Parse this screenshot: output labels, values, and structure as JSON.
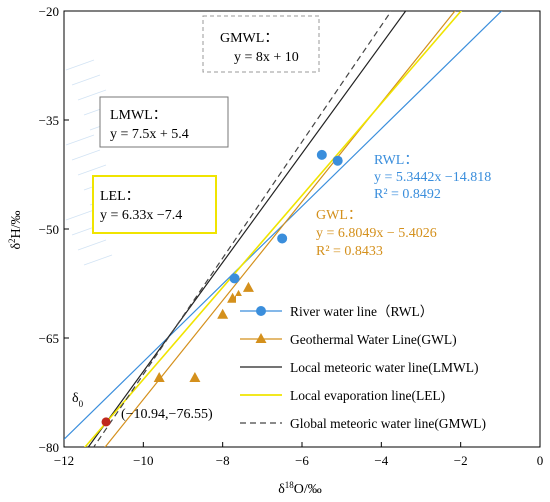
{
  "chart_data": {
    "type": "scatter",
    "xlabel": "δ18O/‰",
    "ylabel": "δ2H/‰",
    "xlim": [
      -12,
      0
    ],
    "ylim": [
      -80,
      -20
    ],
    "xticks": [
      "−12",
      "−10",
      "−8",
      "−6",
      "−4",
      "−2",
      "0"
    ],
    "xtick_values": [
      -12,
      -10,
      -8,
      -6,
      -4,
      -2,
      0
    ],
    "yticks": [
      "−20",
      "−35",
      "−50",
      "−65",
      "−80"
    ],
    "ytick_values": [
      -20,
      -35,
      -50,
      -65,
      -80
    ],
    "colors": {
      "rwl": "#3a8edc",
      "gwl": "#d4901c",
      "lmwl": "#222222",
      "lel": "#f0e400",
      "gmwl": "#444444",
      "origin": "#c0281e"
    },
    "series": [
      {
        "name": "River water line（RWL）",
        "kind": "points+line",
        "marker": "circle",
        "points": [
          [
            -5.5,
            -39.8
          ],
          [
            -5.1,
            -40.6
          ],
          [
            -6.5,
            -51.3
          ],
          [
            -7.7,
            -56.8
          ]
        ],
        "line": {
          "slope": 5.3442,
          "intercept": -14.818
        }
      },
      {
        "name": "Geothermal Water Line(GWL)",
        "kind": "points+line",
        "marker": "triangle",
        "points": [
          [
            -7.35,
            -58.1
          ],
          [
            -7.6,
            -59.2
          ],
          [
            -7.75,
            -59.6
          ],
          [
            -8.0,
            -61.8
          ],
          [
            -9.6,
            -70.5
          ],
          [
            -8.7,
            -70.5
          ]
        ],
        "line": {
          "slope": 6.8049,
          "intercept": -5.4026
        }
      },
      {
        "name": "Local meteoric water line(LMWL)",
        "kind": "line",
        "line": {
          "slope": 7.5,
          "intercept": 5.4
        }
      },
      {
        "name": "Local evaporation line(LEL)",
        "kind": "line",
        "line": {
          "slope": 6.33,
          "intercept": -7.4
        }
      },
      {
        "name": "Global meteoric water line(GMWL)",
        "kind": "line",
        "dashed": true,
        "line": {
          "slope": 8,
          "intercept": 10
        }
      }
    ],
    "origin_point": {
      "x": -10.94,
      "y": -76.55,
      "symbol": "δ0",
      "label": "(−10.94,−76.55)"
    },
    "annotations": {
      "gmwl_title": "GMWL：",
      "gmwl_eq": "y = 8x + 10",
      "lmwl_title": "LMWL：",
      "lmwl_eq": "y = 7.5x + 5.4",
      "lel_title": "LEL：",
      "lel_eq": "y = 6.33x −7.4",
      "rwl_title": "RWL：",
      "rwl_eq": "y = 5.3442x −14.818",
      "rwl_r2": "R² = 0.8492",
      "gwl_title": "GWL：",
      "gwl_eq": "y = 6.8049x − 5.4026",
      "gwl_r2": "R² = 0.8433"
    },
    "legend_position": "bottom-right"
  }
}
